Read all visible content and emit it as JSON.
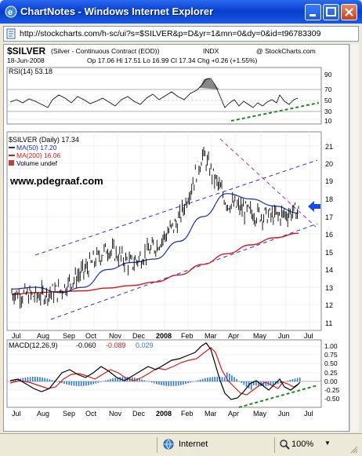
{
  "window": {
    "title": "ChartNotes - Windows Internet Explorer",
    "url": "http://stockcharts.com/h-sc/ui?s=$SILVER&p=D&yr=1&mn=0&dy=0&id=t96783309"
  },
  "chart_header": {
    "symbol": "$SILVER",
    "description": "(Silver - Continuous Contract (EOD))",
    "exchange": "INDX",
    "copyright": "@ StockCharts.com",
    "date": "18-Jun-2008",
    "ohlc": "Op 17.06  Hi 17.51  Lo 16.99  Cl 17.34  Chg +0.26 (+1.55%)"
  },
  "rsi_panel": {
    "label": "RSI(14) 53.18",
    "ticks": [
      "90",
      "70",
      "50",
      "30",
      "10"
    ]
  },
  "price_panel": {
    "legend_main": "$SILVER (Daily) 17.34",
    "legend_ma50": "MA(50) 17.20",
    "legend_ma200": "MA(200) 16.06",
    "legend_volume": "Volume undef",
    "watermark": "www.pdegraaf.com",
    "ticks": [
      "21",
      "20",
      "19",
      "18",
      "17",
      "16",
      "15",
      "14",
      "13",
      "12",
      "11"
    ]
  },
  "x_axis": [
    "Jul",
    "Aug",
    "Sep",
    "Oct",
    "Nov",
    "Dec",
    "2008",
    "Feb",
    "Mar",
    "Apr",
    "May",
    "Jun",
    "Jul"
  ],
  "macd_panel": {
    "label": "MACD(12,26,9)",
    "v1": "-0.060",
    "v2": "-0.089",
    "v3": "0.029",
    "ticks": [
      "1.00",
      "0.75",
      "0.50",
      "0.25",
      "0.00",
      "-0.25",
      "-0.50"
    ]
  },
  "statusbar": {
    "zone": "Internet",
    "zoom": "100%"
  },
  "colors": {
    "price_bars": "#000000",
    "ma50": "#1a2fb0",
    "ma200": "#d81818",
    "trend_channel": "#2233dd",
    "wedge": "#a030c0",
    "uptrend_green": "#228822",
    "signal_arrow": "#1a4ae0"
  },
  "chart_data": {
    "type": "line",
    "series": [
      {
        "name": "$SILVER (Daily)",
        "x": [
          "Jul",
          "Aug",
          "Sep",
          "Oct",
          "Nov",
          "Dec",
          "2008",
          "Feb",
          "Mar",
          "Apr",
          "May",
          "Jun",
          "18-Jun-2008"
        ],
        "values": [
          12.7,
          12.5,
          12.8,
          13.9,
          15.2,
          14.3,
          15.3,
          16.8,
          20.5,
          17.8,
          17.2,
          17.0,
          17.34
        ]
      },
      {
        "name": "MA(50)",
        "x": [
          "Jul",
          "Aug",
          "Sep",
          "Oct",
          "Nov",
          "Dec",
          "2008",
          "Feb",
          "Mar",
          "Apr",
          "May",
          "Jun",
          "18-Jun-2008"
        ],
        "values": [
          12.9,
          13.0,
          12.7,
          13.0,
          14.0,
          14.4,
          14.6,
          15.6,
          17.0,
          18.3,
          18.0,
          17.6,
          17.2
        ]
      },
      {
        "name": "MA(200)",
        "x": [
          "Jul",
          "Aug",
          "Sep",
          "Oct",
          "Nov",
          "Dec",
          "2008",
          "Feb",
          "Mar",
          "Apr",
          "May",
          "Jun",
          "18-Jun-2008"
        ],
        "values": [
          12.6,
          12.7,
          12.75,
          12.8,
          12.95,
          13.1,
          13.3,
          13.7,
          14.3,
          14.9,
          15.4,
          15.8,
          16.06
        ]
      }
    ],
    "ylim": [
      11,
      21
    ]
  }
}
